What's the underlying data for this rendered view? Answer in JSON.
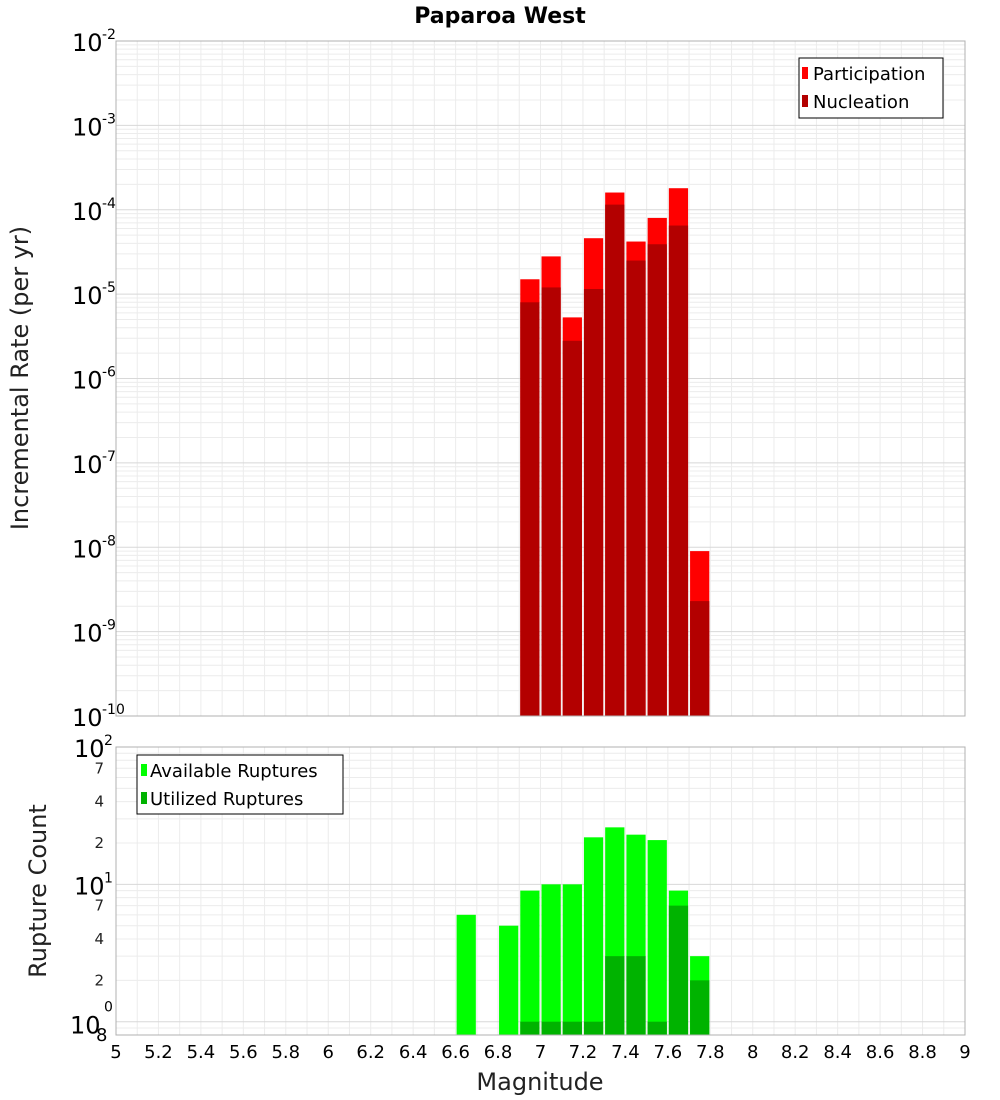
{
  "chart_data": [
    {
      "type": "bar",
      "title": "Paparoa West",
      "ylabel": "Incremental Rate (per yr)",
      "xlabel": "",
      "xlim": [
        5,
        9
      ],
      "ylim": [
        1e-10,
        0.01
      ],
      "yscale": "log",
      "grid": true,
      "legend_position": "top-right",
      "bar_width": 0.1,
      "series": [
        {
          "name": "Participation",
          "color": "#ff0000",
          "x": [
            6.95,
            7.05,
            7.15,
            7.25,
            7.35,
            7.45,
            7.55,
            7.65,
            7.75
          ],
          "values": [
            1.5e-05,
            2.8e-05,
            5.3e-06,
            4.6e-05,
            0.00016,
            4.2e-05,
            8e-05,
            0.00018,
            9e-09
          ]
        },
        {
          "name": "Nucleation",
          "color": "#b30000",
          "x": [
            6.95,
            7.05,
            7.15,
            7.25,
            7.35,
            7.45,
            7.55,
            7.65,
            7.75
          ],
          "values": [
            8e-06,
            1.2e-05,
            2.8e-06,
            1.15e-05,
            0.000115,
            2.5e-05,
            3.9e-05,
            6.5e-05,
            2.3e-09
          ]
        }
      ],
      "y_ticks": [
        {
          "base": "10",
          "exp": "-2"
        },
        {
          "base": "10",
          "exp": "-3"
        },
        {
          "base": "10",
          "exp": "-4"
        },
        {
          "base": "10",
          "exp": "-5"
        },
        {
          "base": "10",
          "exp": "-6"
        },
        {
          "base": "10",
          "exp": "-7"
        },
        {
          "base": "10",
          "exp": "-8"
        },
        {
          "base": "10",
          "exp": "-9"
        },
        {
          "base": "10",
          "exp": "-10"
        }
      ]
    },
    {
      "type": "bar",
      "title": "",
      "ylabel": "Rupture Count",
      "xlabel": "Magnitude",
      "xlim": [
        5,
        9
      ],
      "ylim": [
        0.8,
        100
      ],
      "yscale": "log",
      "grid": true,
      "legend_position": "top-left",
      "bar_width": 0.1,
      "series": [
        {
          "name": "Available Ruptures",
          "color": "#00ff00",
          "x": [
            6.65,
            6.85,
            6.95,
            7.05,
            7.15,
            7.25,
            7.35,
            7.45,
            7.55,
            7.65,
            7.75
          ],
          "values": [
            6,
            5,
            9,
            10,
            10,
            22,
            26,
            23,
            21,
            9,
            3
          ]
        },
        {
          "name": "Utilized Ruptures",
          "color": "#00b300",
          "x": [
            6.95,
            7.05,
            7.15,
            7.25,
            7.35,
            7.45,
            7.55,
            7.65,
            7.75
          ],
          "values": [
            1,
            1,
            1,
            1,
            3,
            3,
            1,
            7,
            2
          ]
        }
      ],
      "y_ticks": [
        {
          "base": "10",
          "exp": "2"
        },
        {
          "base": "10",
          "exp": "1"
        },
        {
          "base": "10",
          "exp": "0"
        }
      ],
      "y_minor_labels": [
        "7",
        "4",
        "2",
        "7",
        "4",
        "2",
        "8"
      ],
      "x_ticks": [
        "5",
        "5.2",
        "5.4",
        "5.6",
        "5.8",
        "6",
        "6.2",
        "6.4",
        "6.6",
        "6.8",
        "7",
        "7.2",
        "7.4",
        "7.6",
        "7.8",
        "8",
        "8.2",
        "8.4",
        "8.6",
        "8.8",
        "9"
      ]
    }
  ]
}
